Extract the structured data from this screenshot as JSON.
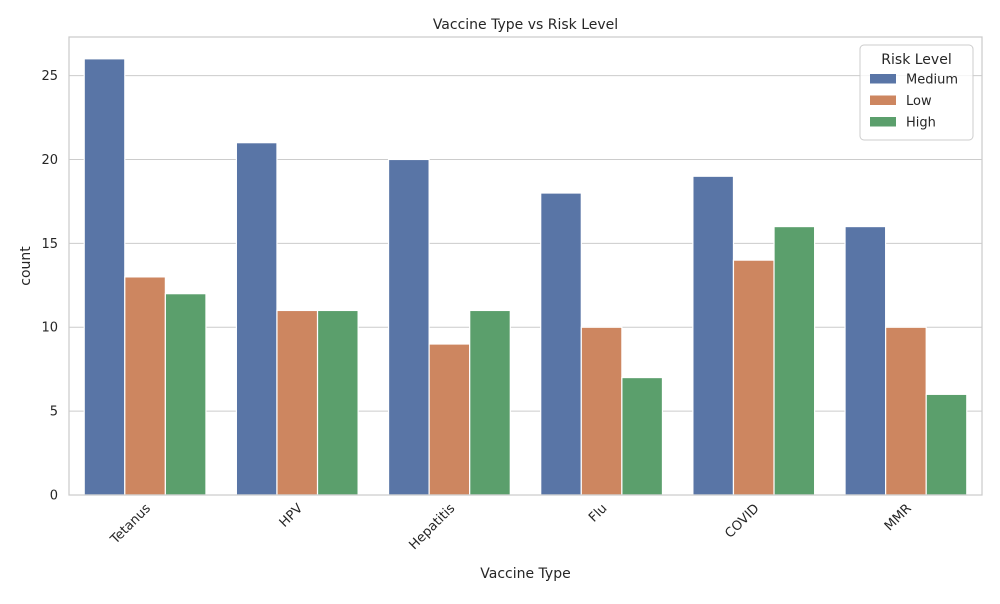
{
  "chart_data": {
    "type": "bar",
    "title": "Vaccine Type vs Risk Level",
    "xlabel": "Vaccine Type",
    "ylabel": "count",
    "categories": [
      "Tetanus",
      "HPV",
      "Hepatitis",
      "Flu",
      "COVID",
      "MMR"
    ],
    "series": [
      {
        "name": "Medium",
        "color": "#5975a6",
        "values": [
          26,
          21,
          20,
          18,
          19,
          16
        ]
      },
      {
        "name": "Low",
        "color": "#cd8660",
        "values": [
          13,
          11,
          9,
          10,
          14,
          10
        ]
      },
      {
        "name": "High",
        "color": "#5b9f6c",
        "values": [
          12,
          11,
          11,
          7,
          16,
          6
        ]
      }
    ],
    "ylim": [
      0,
      27.3
    ],
    "yticks": [
      0,
      5,
      10,
      15,
      20,
      25
    ],
    "grid": "horizontal",
    "legend": {
      "title": "Risk Level",
      "placement": "top-right"
    },
    "x_tick_rotation_deg": 45
  }
}
